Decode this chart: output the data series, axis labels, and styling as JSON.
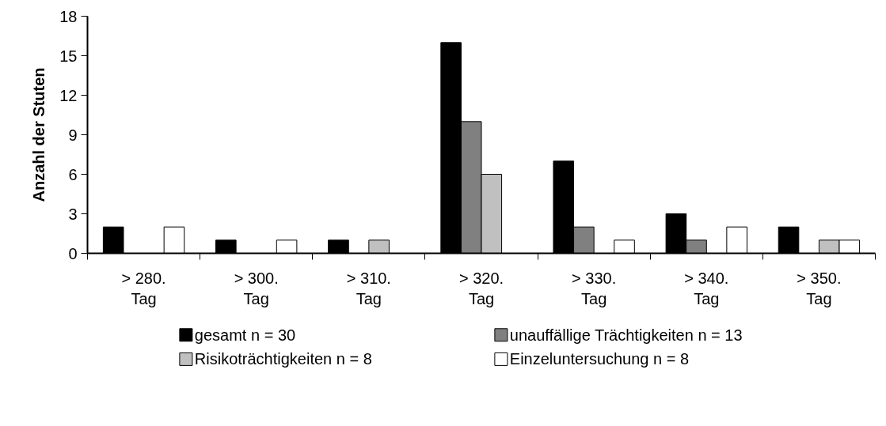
{
  "chart_data": {
    "type": "bar",
    "ylabel": "Anzahl der Stuten",
    "categories": [
      "> 280.\nTag",
      "> 300.\nTag",
      "> 310.\nTag",
      "> 320.\nTag",
      "> 330.\nTag",
      "> 340.\nTag",
      "> 350.\nTag"
    ],
    "series": [
      {
        "name": "gesamt n = 30",
        "color": "#000000",
        "values": [
          2,
          1,
          1,
          16,
          7,
          3,
          2
        ]
      },
      {
        "name": "unauffällige Trächtigkeiten n = 13",
        "color": "#808080",
        "values": [
          0,
          0,
          0,
          10,
          2,
          1,
          0
        ]
      },
      {
        "name": "Risikoträchtigkeiten n = 8",
        "color": "#c0c0c0",
        "values": [
          0,
          0,
          1,
          6,
          0,
          0,
          1
        ]
      },
      {
        "name": "Einzeluntersuchung n = 8",
        "color": "#ffffff",
        "values": [
          2,
          1,
          0,
          0,
          1,
          2,
          1
        ]
      }
    ],
    "ylim": [
      0,
      18
    ],
    "yticks": [
      0,
      3,
      6,
      9,
      12,
      15,
      18
    ],
    "grid": false,
    "legend": "bottom"
  }
}
